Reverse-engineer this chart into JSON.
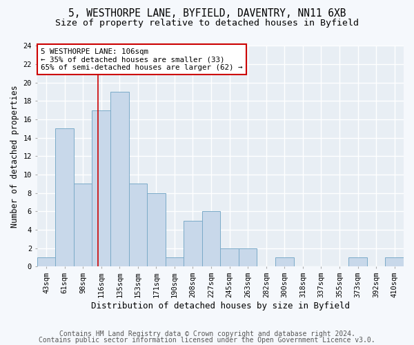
{
  "title1": "5, WESTHORPE LANE, BYFIELD, DAVENTRY, NN11 6XB",
  "title2": "Size of property relative to detached houses in Byfield",
  "xlabel": "Distribution of detached houses by size in Byfield",
  "ylabel": "Number of detached properties",
  "bar_values": [
    1,
    15,
    9,
    17,
    19,
    9,
    8,
    1,
    5,
    6,
    2,
    2,
    0,
    1,
    0,
    0,
    0,
    1,
    0,
    1
  ],
  "bar_labels": [
    "43sqm",
    "61sqm",
    "98sqm",
    "116sqm",
    "135sqm",
    "153sqm",
    "171sqm",
    "190sqm",
    "208sqm",
    "227sqm",
    "245sqm",
    "263sqm",
    "282sqm",
    "300sqm",
    "318sqm",
    "337sqm",
    "355sqm",
    "373sqm",
    "392sqm",
    "410sqm"
  ],
  "bar_color": "#c8d8ea",
  "bar_edge_color": "#7aaac8",
  "bar_edge_width": 0.7,
  "red_line_x": 2.82,
  "annotation_text1": "5 WESTHORPE LANE: 106sqm",
  "annotation_text2": "← 35% of detached houses are smaller (33)",
  "annotation_text3": "65% of semi-detached houses are larger (62) →",
  "annotation_box_color": "#ffffff",
  "annotation_border_color": "#cc0000",
  "ylim_max": 24,
  "yticks": [
    0,
    2,
    4,
    6,
    8,
    10,
    12,
    14,
    16,
    18,
    20,
    22,
    24
  ],
  "footer1": "Contains HM Land Registry data © Crown copyright and database right 2024.",
  "footer2": "Contains public sector information licensed under the Open Government Licence v3.0.",
  "plot_bg_color": "#e8eef4",
  "fig_bg_color": "#f5f8fc",
  "grid_color": "#ffffff",
  "title1_fontsize": 10.5,
  "title2_fontsize": 9.5,
  "xlabel_fontsize": 9,
  "ylabel_fontsize": 8.5,
  "tick_fontsize": 7.5,
  "annot_fontsize": 7.8,
  "footer_fontsize": 7
}
